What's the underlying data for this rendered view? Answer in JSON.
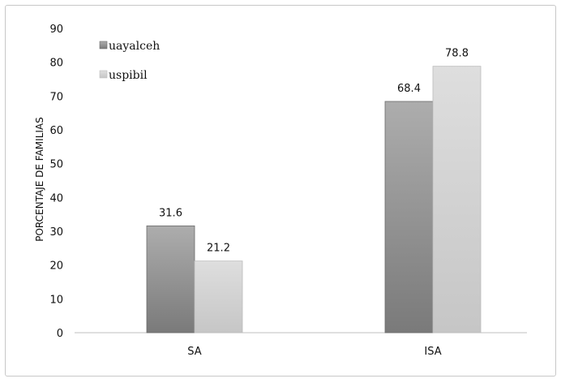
{
  "chart_data": {
    "type": "bar",
    "categories": [
      "SA",
      "ISA"
    ],
    "series": [
      {
        "name": "uayalceh",
        "values": [
          31.6,
          68.4
        ]
      },
      {
        "name": "uspibil",
        "values": [
          21.2,
          78.8
        ]
      }
    ],
    "title": "",
    "xlabel": "",
    "ylabel": "PORCENTAJE DE FAMILIAS",
    "ylim": [
      0,
      90
    ],
    "yticks": [
      0,
      10,
      20,
      30,
      40,
      50,
      60,
      70,
      80,
      90
    ],
    "grid": false,
    "legend": "top-left",
    "data_labels": [
      "31.6",
      "68.4",
      "21.2",
      "78.8"
    ],
    "colors": {
      "uayalceh_top": "#adadad",
      "uayalceh_bottom": "#7a7a7a",
      "uspibil_top": "#dedede",
      "uspibil_bottom": "#c6c6c6",
      "axis": "#bfbfbf"
    }
  }
}
